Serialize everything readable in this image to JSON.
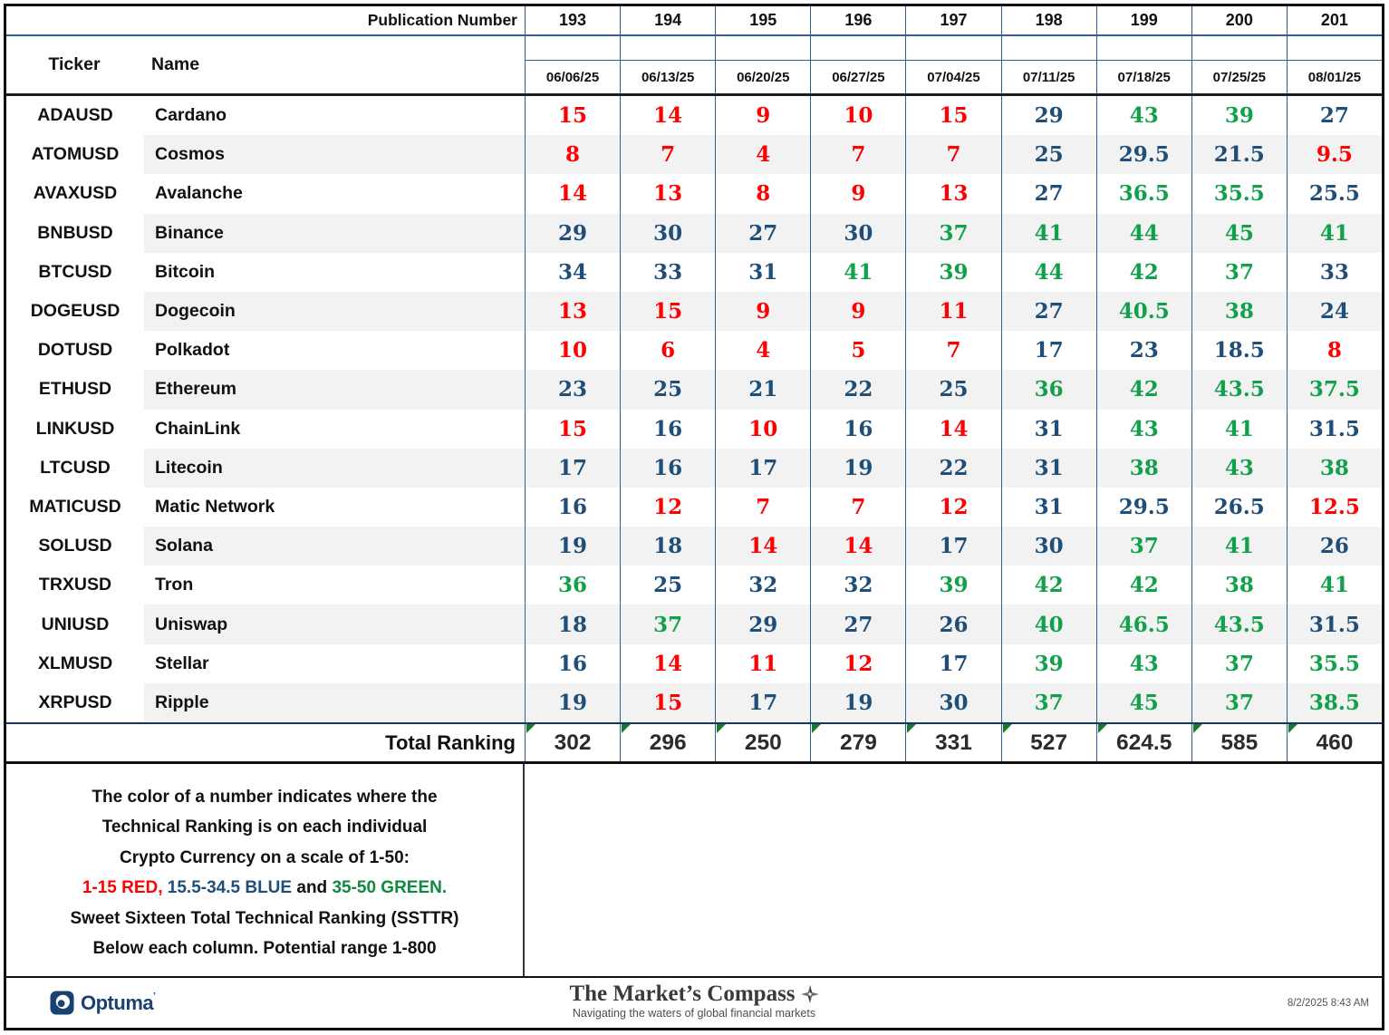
{
  "header": {
    "publication_label": "Publication Number",
    "publication_numbers": [
      "193",
      "194",
      "195",
      "196",
      "197",
      "198",
      "199",
      "200",
      "201"
    ],
    "ticker_label": "Ticker",
    "name_label": "Name",
    "dates": [
      "06/06/25",
      "06/13/25",
      "06/20/25",
      "06/27/25",
      "07/04/25",
      "07/11/25",
      "07/18/25",
      "07/25/25",
      "08/01/25"
    ]
  },
  "rows": [
    {
      "ticker": "ADAUSD",
      "name": "Cardano",
      "values": [
        15,
        14,
        9,
        10,
        15,
        29,
        43,
        39,
        27
      ]
    },
    {
      "ticker": "ATOMUSD",
      "name": "Cosmos",
      "values": [
        8,
        7,
        4,
        7,
        7,
        25,
        29.5,
        21.5,
        9.5
      ]
    },
    {
      "ticker": "AVAXUSD",
      "name": "Avalanche",
      "values": [
        14,
        13,
        8,
        9,
        13,
        27,
        36.5,
        35.5,
        25.5
      ]
    },
    {
      "ticker": "BNBUSD",
      "name": "Binance",
      "values": [
        29,
        30,
        27,
        30,
        37,
        41,
        44,
        45,
        41
      ]
    },
    {
      "ticker": "BTCUSD",
      "name": "Bitcoin",
      "values": [
        34,
        33,
        31,
        41,
        39,
        44,
        42,
        37,
        33
      ]
    },
    {
      "ticker": "DOGEUSD",
      "name": "Dogecoin",
      "values": [
        13,
        15,
        9,
        9,
        11,
        27,
        40.5,
        38,
        24
      ]
    },
    {
      "ticker": "DOTUSD",
      "name": "Polkadot",
      "values": [
        10,
        6,
        4,
        5,
        7,
        17,
        23,
        18.5,
        8
      ]
    },
    {
      "ticker": "ETHUSD",
      "name": "Ethereum",
      "values": [
        23,
        25,
        21,
        22,
        25,
        36,
        42,
        43.5,
        37.5
      ]
    },
    {
      "ticker": "LINKUSD",
      "name": "ChainLink",
      "values": [
        15,
        16,
        10,
        16,
        14,
        31,
        43,
        41,
        31.5
      ]
    },
    {
      "ticker": "LTCUSD",
      "name": "Litecoin",
      "values": [
        17,
        16,
        17,
        19,
        22,
        31,
        38,
        43,
        38
      ]
    },
    {
      "ticker": "MATICUSD",
      "name": "Matic Network",
      "values": [
        16,
        12,
        7,
        7,
        12,
        31,
        29.5,
        26.5,
        12.5
      ]
    },
    {
      "ticker": "SOLUSD",
      "name": "Solana",
      "values": [
        19,
        18,
        14,
        14,
        17,
        30,
        37,
        41,
        26
      ]
    },
    {
      "ticker": "TRXUSD",
      "name": "Tron",
      "values": [
        36,
        25,
        32,
        32,
        39,
        42,
        42,
        38,
        41
      ]
    },
    {
      "ticker": "UNIUSD",
      "name": "Uniswap",
      "values": [
        18,
        37,
        29,
        27,
        26,
        40,
        46.5,
        43.5,
        31.5
      ]
    },
    {
      "ticker": "XLMUSD",
      "name": "Stellar",
      "values": [
        16,
        14,
        11,
        12,
        17,
        39,
        43,
        37,
        35.5
      ]
    },
    {
      "ticker": "XRPUSD",
      "name": "Ripple",
      "values": [
        19,
        15,
        17,
        19,
        30,
        37,
        45,
        37,
        38.5
      ]
    }
  ],
  "total": {
    "label": "Total Ranking",
    "values": [
      302,
      296,
      250,
      279,
      331,
      527,
      624.5,
      585,
      460
    ]
  },
  "note": {
    "lines_top": [
      "The color of a number indicates where the",
      "Technical Ranking is on each individual",
      "Crypto Currency on a scale of 1-50:"
    ],
    "legend_parts": [
      {
        "text": "1-15 RED,",
        "color": "red"
      },
      {
        "text": " 15.5-34.5 BLUE",
        "color": "blue"
      },
      {
        "text": " and ",
        "color": "black"
      },
      {
        "text": "35-50 GREEN.",
        "color": "green"
      }
    ],
    "lines_bottom": [
      "Sweet Sixteen Total Technical Ranking (SSTTR)",
      "Below each column.   Potential range 1-800"
    ]
  },
  "legend_rule": {
    "red_max": 15,
    "blue_min": 15.5,
    "blue_max": 34.5,
    "green_min": 35,
    "green_max": 50,
    "total_potential_range": "1-800"
  },
  "footer": {
    "optuma_label": "Optuma",
    "optuma_mark": "’",
    "brand": "The Market’s Compass",
    "tagline": "Navigating the waters of global financial markets",
    "timestamp": "8/2/2025 8:43 AM"
  },
  "colors": {
    "red": "#FF0000",
    "blue": "#1F4E79",
    "green": "#12A14B",
    "grid_border": "#2E6096",
    "total_text": "#2B2B2B",
    "stripe": "#F2F2F2",
    "triangle": "#157A2E",
    "logo_navy": "#1B4173"
  }
}
